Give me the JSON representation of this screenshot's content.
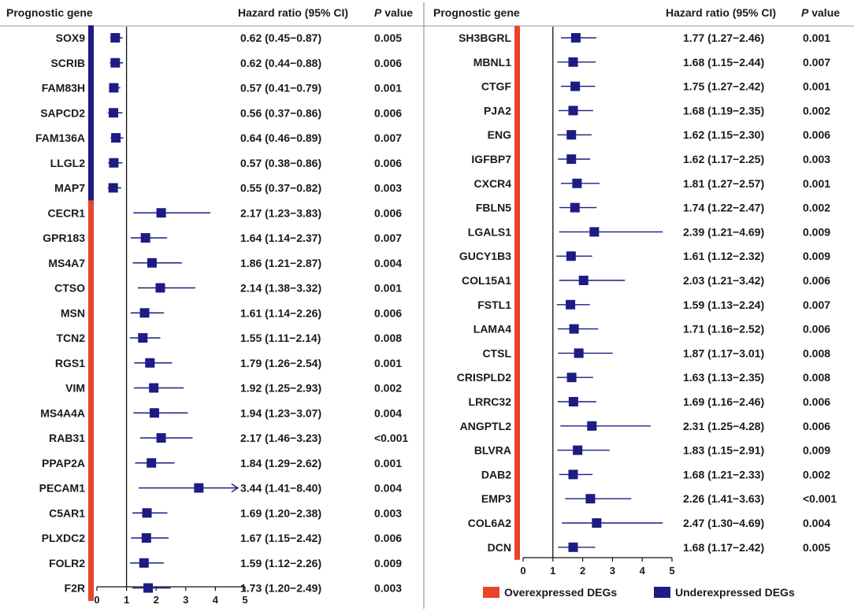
{
  "chart_data": [
    {
      "type": "forest",
      "panel": "left",
      "headers": {
        "gene": "Prognostic gene",
        "hr": "Hazard ratio (95% CI)",
        "p_italic": "P",
        "p_rest": " value"
      },
      "x_ticks": [
        "0",
        "1",
        "2",
        "3",
        "4",
        "5"
      ],
      "xlim": [
        0,
        5
      ],
      "reference_line": 1,
      "rows": [
        {
          "gene": "SOX9",
          "hr": 0.62,
          "lo": 0.45,
          "hi": 0.87,
          "hr_text": "0.62 (0.45−0.87)",
          "p": "0.005",
          "group": "under"
        },
        {
          "gene": "SCRIB",
          "hr": 0.62,
          "lo": 0.44,
          "hi": 0.88,
          "hr_text": "0.62 (0.44−0.88)",
          "p": "0.006",
          "group": "under"
        },
        {
          "gene": "FAM83H",
          "hr": 0.57,
          "lo": 0.41,
          "hi": 0.79,
          "hr_text": "0.57 (0.41−0.79)",
          "p": "0.001",
          "group": "under"
        },
        {
          "gene": "SAPCD2",
          "hr": 0.56,
          "lo": 0.37,
          "hi": 0.86,
          "hr_text": "0.56 (0.37−0.86)",
          "p": "0.006",
          "group": "under"
        },
        {
          "gene": "FAM136A",
          "hr": 0.64,
          "lo": 0.46,
          "hi": 0.89,
          "hr_text": "0.64 (0.46−0.89)",
          "p": "0.007",
          "group": "under"
        },
        {
          "gene": "LLGL2",
          "hr": 0.57,
          "lo": 0.38,
          "hi": 0.86,
          "hr_text": "0.57 (0.38−0.86)",
          "p": "0.006",
          "group": "under"
        },
        {
          "gene": "MAP7",
          "hr": 0.55,
          "lo": 0.37,
          "hi": 0.82,
          "hr_text": "0.55 (0.37−0.82)",
          "p": "0.003",
          "group": "under"
        },
        {
          "gene": "CECR1",
          "hr": 2.17,
          "lo": 1.23,
          "hi": 3.83,
          "hr_text": "2.17 (1.23−3.83)",
          "p": "0.006",
          "group": "over"
        },
        {
          "gene": "GPR183",
          "hr": 1.64,
          "lo": 1.14,
          "hi": 2.37,
          "hr_text": "1.64 (1.14−2.37)",
          "p": "0.007",
          "group": "over"
        },
        {
          "gene": "MS4A7",
          "hr": 1.86,
          "lo": 1.21,
          "hi": 2.87,
          "hr_text": "1.86 (1.21−2.87)",
          "p": "0.004",
          "group": "over"
        },
        {
          "gene": "CTSO",
          "hr": 2.14,
          "lo": 1.38,
          "hi": 3.32,
          "hr_text": "2.14 (1.38−3.32)",
          "p": "0.001",
          "group": "over"
        },
        {
          "gene": "MSN",
          "hr": 1.61,
          "lo": 1.14,
          "hi": 2.26,
          "hr_text": "1.61 (1.14−2.26)",
          "p": "0.006",
          "group": "over"
        },
        {
          "gene": "TCN2",
          "hr": 1.55,
          "lo": 1.11,
          "hi": 2.14,
          "hr_text": "1.55 (1.11−2.14)",
          "p": "0.008",
          "group": "over"
        },
        {
          "gene": "RGS1",
          "hr": 1.79,
          "lo": 1.26,
          "hi": 2.54,
          "hr_text": "1.79 (1.26−2.54)",
          "p": "0.001",
          "group": "over"
        },
        {
          "gene": "VIM",
          "hr": 1.92,
          "lo": 1.25,
          "hi": 2.93,
          "hr_text": "1.92 (1.25−2.93)",
          "p": "0.002",
          "group": "over"
        },
        {
          "gene": "MS4A4A",
          "hr": 1.94,
          "lo": 1.23,
          "hi": 3.07,
          "hr_text": "1.94 (1.23−3.07)",
          "p": "0.004",
          "group": "over"
        },
        {
          "gene": "RAB31",
          "hr": 2.17,
          "lo": 1.46,
          "hi": 3.23,
          "hr_text": "2.17 (1.46−3.23)",
          "p": "<0.001",
          "group": "over"
        },
        {
          "gene": "PPAP2A",
          "hr": 1.84,
          "lo": 1.29,
          "hi": 2.62,
          "hr_text": "1.84 (1.29−2.62)",
          "p": "0.001",
          "group": "over"
        },
        {
          "gene": "PECAM1",
          "hr": 3.44,
          "lo": 1.41,
          "hi": 8.4,
          "hr_text": "3.44 (1.41−8.40)",
          "p": "0.004",
          "group": "over"
        },
        {
          "gene": "C5AR1",
          "hr": 1.69,
          "lo": 1.2,
          "hi": 2.38,
          "hr_text": "1.69 (1.20−2.38)",
          "p": "0.003",
          "group": "over"
        },
        {
          "gene": "PLXDC2",
          "hr": 1.67,
          "lo": 1.15,
          "hi": 2.42,
          "hr_text": "1.67 (1.15−2.42)",
          "p": "0.006",
          "group": "over"
        },
        {
          "gene": "FOLR2",
          "hr": 1.59,
          "lo": 1.12,
          "hi": 2.26,
          "hr_text": "1.59 (1.12−2.26)",
          "p": "0.009",
          "group": "over"
        },
        {
          "gene": "F2R",
          "hr": 1.73,
          "lo": 1.2,
          "hi": 2.49,
          "hr_text": "1.73 (1.20−2.49)",
          "p": "0.003",
          "group": "over"
        }
      ]
    },
    {
      "type": "forest",
      "panel": "right",
      "headers": {
        "gene": "Prognostic gene",
        "hr": "Hazard ratio (95% CI)",
        "p_italic": "P",
        "p_rest": " value"
      },
      "x_ticks": [
        "0",
        "1",
        "2",
        "3",
        "4",
        "5"
      ],
      "xlim": [
        0,
        5
      ],
      "reference_line": 1,
      "rows": [
        {
          "gene": "SH3BGRL",
          "hr": 1.77,
          "lo": 1.27,
          "hi": 2.46,
          "hr_text": "1.77 (1.27−2.46)",
          "p": "0.001",
          "group": "over"
        },
        {
          "gene": "MBNL1",
          "hr": 1.68,
          "lo": 1.15,
          "hi": 2.44,
          "hr_text": "1.68 (1.15−2.44)",
          "p": "0.007",
          "group": "over"
        },
        {
          "gene": "CTGF",
          "hr": 1.75,
          "lo": 1.27,
          "hi": 2.42,
          "hr_text": "1.75 (1.27−2.42)",
          "p": "0.001",
          "group": "over"
        },
        {
          "gene": "PJA2",
          "hr": 1.68,
          "lo": 1.19,
          "hi": 2.35,
          "hr_text": "1.68 (1.19−2.35)",
          "p": "0.002",
          "group": "over"
        },
        {
          "gene": "ENG",
          "hr": 1.62,
          "lo": 1.15,
          "hi": 2.3,
          "hr_text": "1.62 (1.15−2.30)",
          "p": "0.006",
          "group": "over"
        },
        {
          "gene": "IGFBP7",
          "hr": 1.62,
          "lo": 1.17,
          "hi": 2.25,
          "hr_text": "1.62 (1.17−2.25)",
          "p": "0.003",
          "group": "over"
        },
        {
          "gene": "CXCR4",
          "hr": 1.81,
          "lo": 1.27,
          "hi": 2.57,
          "hr_text": "1.81 (1.27−2.57)",
          "p": "0.001",
          "group": "over"
        },
        {
          "gene": "FBLN5",
          "hr": 1.74,
          "lo": 1.22,
          "hi": 2.47,
          "hr_text": "1.74 (1.22−2.47)",
          "p": "0.002",
          "group": "over"
        },
        {
          "gene": "LGALS1",
          "hr": 2.39,
          "lo": 1.21,
          "hi": 4.69,
          "hr_text": "2.39 (1.21−4.69)",
          "p": "0.009",
          "group": "over"
        },
        {
          "gene": "GUCY1B3",
          "hr": 1.61,
          "lo": 1.12,
          "hi": 2.32,
          "hr_text": "1.61 (1.12−2.32)",
          "p": "0.009",
          "group": "over"
        },
        {
          "gene": "COL15A1",
          "hr": 2.03,
          "lo": 1.21,
          "hi": 3.42,
          "hr_text": "2.03 (1.21−3.42)",
          "p": "0.006",
          "group": "over"
        },
        {
          "gene": "FSTL1",
          "hr": 1.59,
          "lo": 1.13,
          "hi": 2.24,
          "hr_text": "1.59 (1.13−2.24)",
          "p": "0.007",
          "group": "over"
        },
        {
          "gene": "LAMA4",
          "hr": 1.71,
          "lo": 1.16,
          "hi": 2.52,
          "hr_text": "1.71 (1.16−2.52)",
          "p": "0.006",
          "group": "over"
        },
        {
          "gene": "CTSL",
          "hr": 1.87,
          "lo": 1.17,
          "hi": 3.01,
          "hr_text": "1.87 (1.17−3.01)",
          "p": "0.008",
          "group": "over"
        },
        {
          "gene": "CRISPLD2",
          "hr": 1.63,
          "lo": 1.13,
          "hi": 2.35,
          "hr_text": "1.63 (1.13−2.35)",
          "p": "0.008",
          "group": "over"
        },
        {
          "gene": "LRRC32",
          "hr": 1.69,
          "lo": 1.16,
          "hi": 2.46,
          "hr_text": "1.69 (1.16−2.46)",
          "p": "0.006",
          "group": "over"
        },
        {
          "gene": "ANGPTL2",
          "hr": 2.31,
          "lo": 1.25,
          "hi": 4.28,
          "hr_text": "2.31 (1.25−4.28)",
          "p": "0.006",
          "group": "over"
        },
        {
          "gene": "BLVRA",
          "hr": 1.83,
          "lo": 1.15,
          "hi": 2.91,
          "hr_text": "1.83 (1.15−2.91)",
          "p": "0.009",
          "group": "over"
        },
        {
          "gene": "DAB2",
          "hr": 1.68,
          "lo": 1.21,
          "hi": 2.33,
          "hr_text": "1.68 (1.21−2.33)",
          "p": "0.002",
          "group": "over"
        },
        {
          "gene": "EMP3",
          "hr": 2.26,
          "lo": 1.41,
          "hi": 3.63,
          "hr_text": "2.26 (1.41−3.63)",
          "p": "<0.001",
          "group": "over"
        },
        {
          "gene": "COL6A2",
          "hr": 2.47,
          "lo": 1.3,
          "hi": 4.69,
          "hr_text": "2.47 (1.30−4.69)",
          "p": "0.004",
          "group": "over"
        },
        {
          "gene": "DCN",
          "hr": 1.68,
          "lo": 1.17,
          "hi": 2.42,
          "hr_text": "1.68 (1.17−2.42)",
          "p": "0.005",
          "group": "over"
        }
      ]
    }
  ],
  "legend": [
    {
      "label": "Overexpressed DEGs",
      "color": "#e8442a"
    },
    {
      "label": "Underexpressed DEGs",
      "color": "#1c1c84"
    }
  ],
  "colors": {
    "over": "#e8442a",
    "under": "#1c1c84",
    "marker": "#1c1c84"
  }
}
